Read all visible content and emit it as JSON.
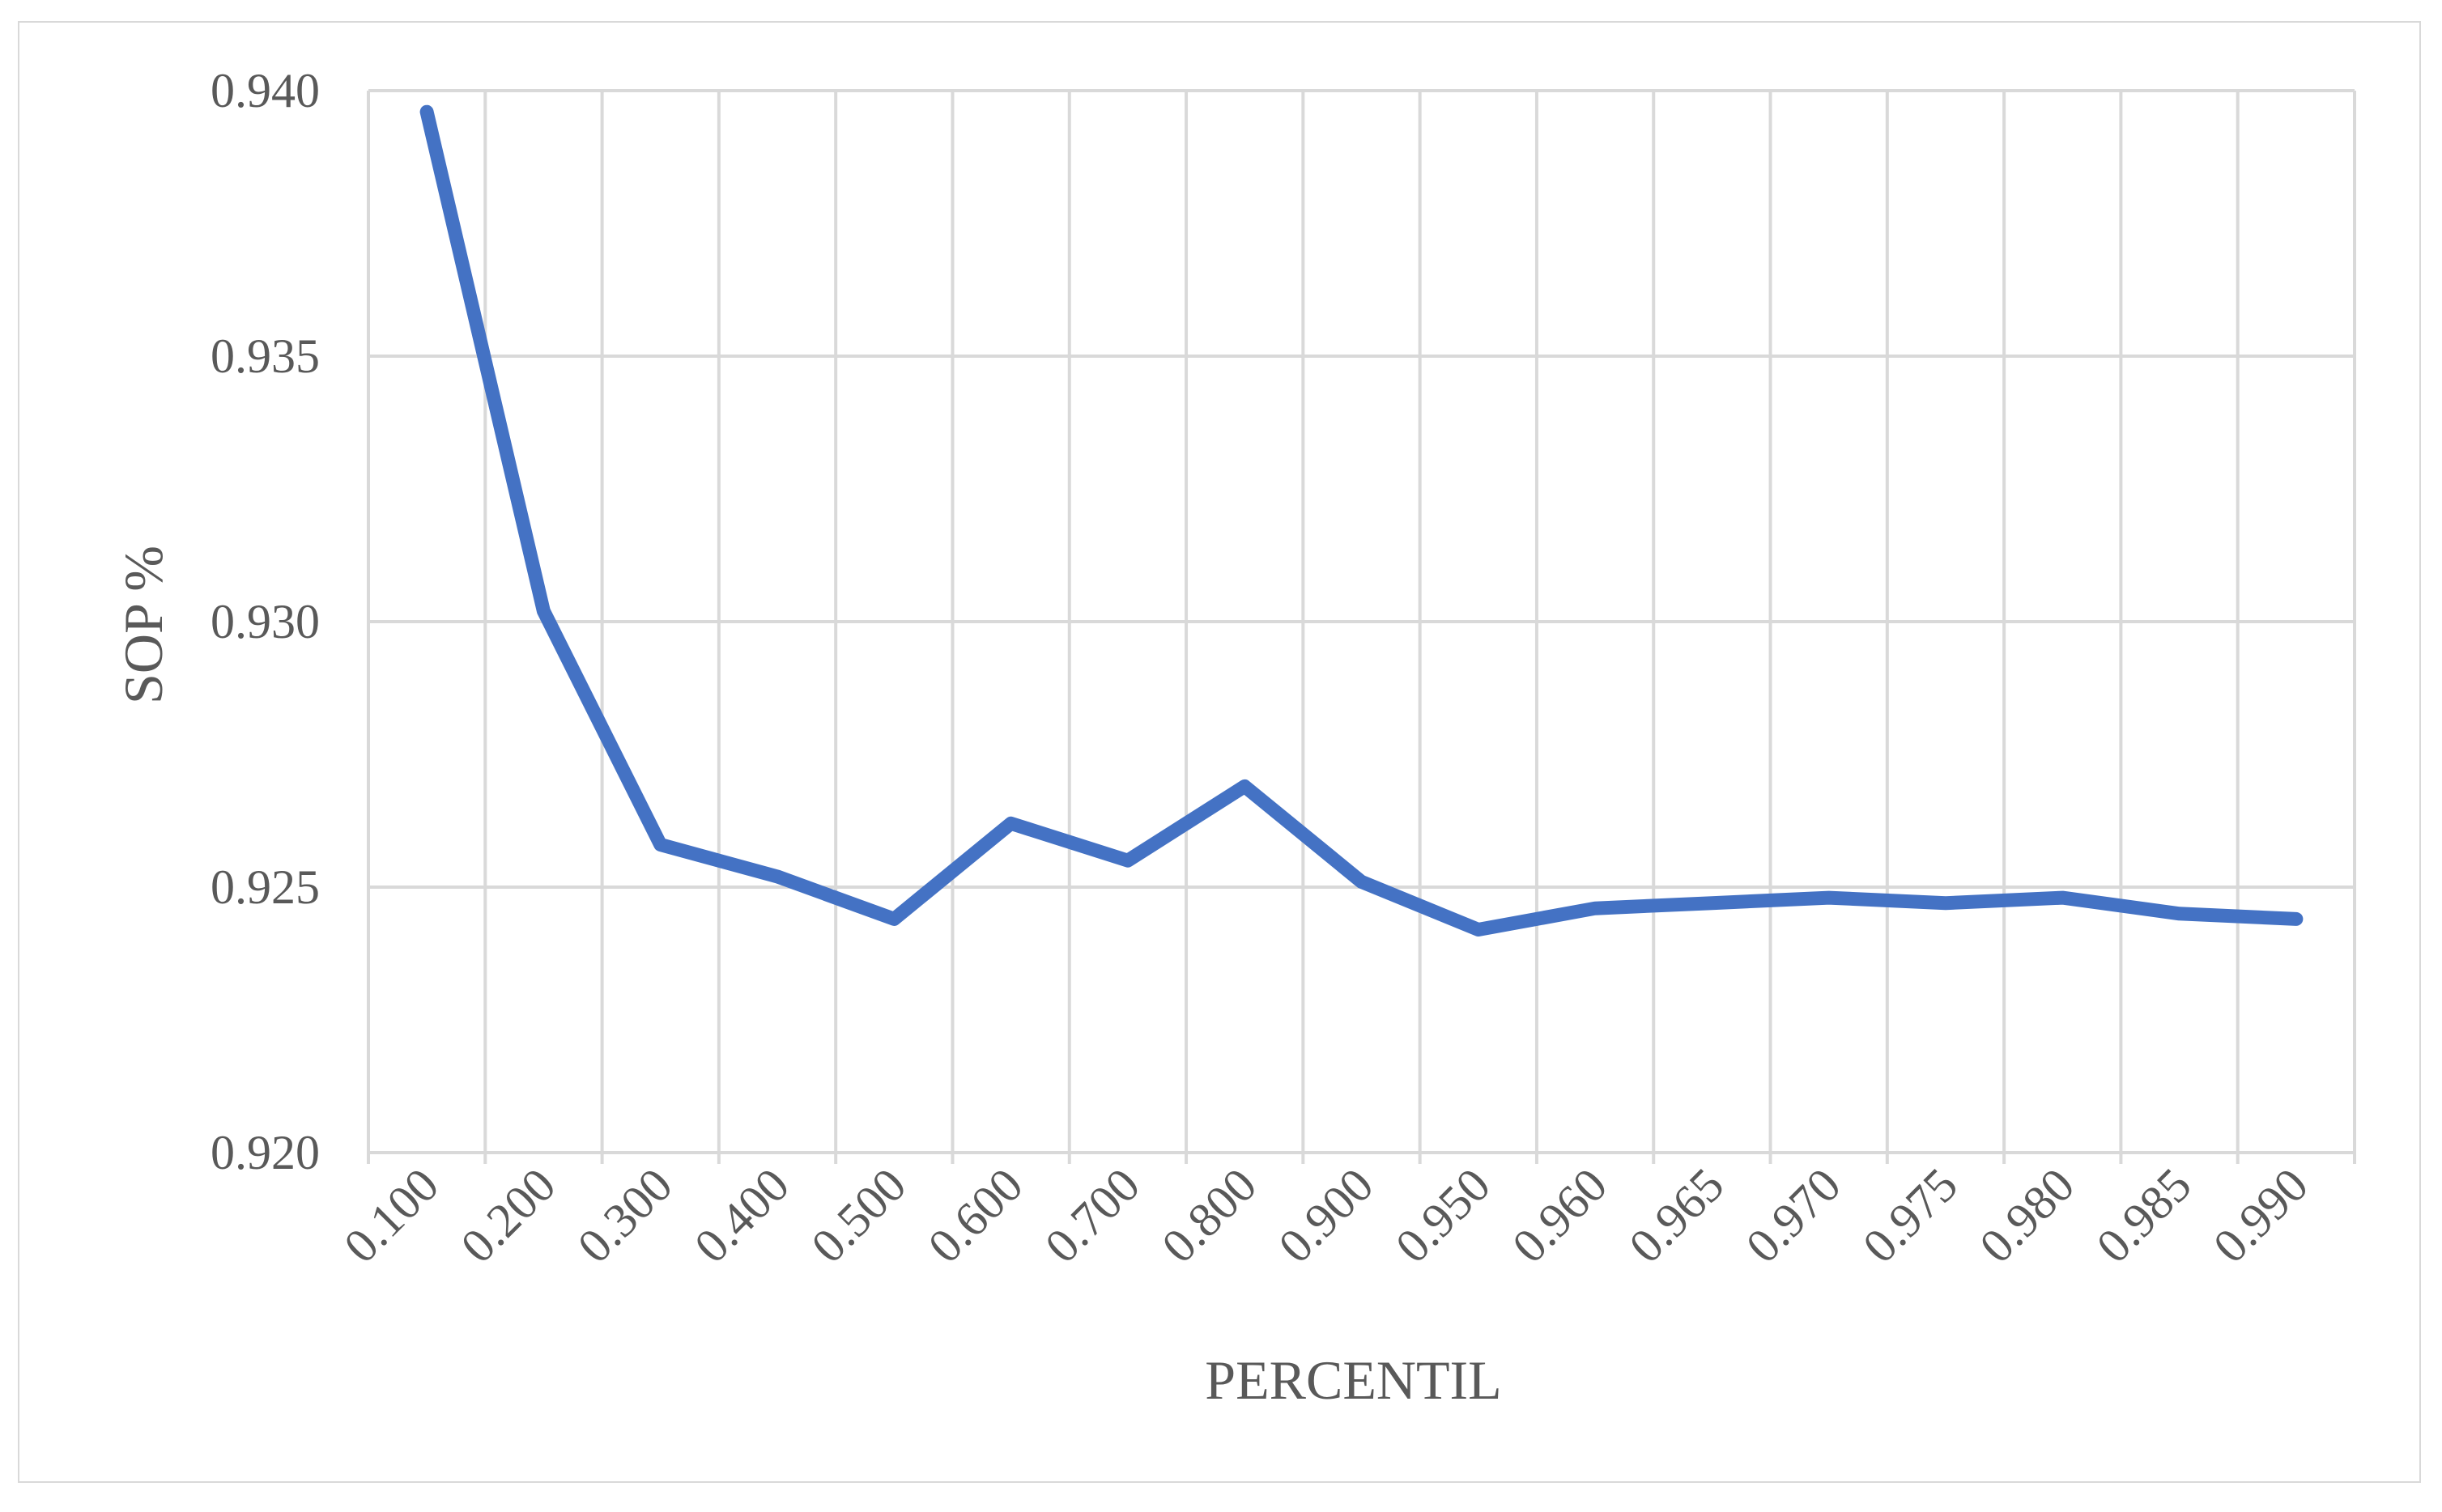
{
  "chart_data": {
    "type": "line",
    "title": "",
    "xlabel": "PERCENTIL",
    "ylabel": "SOP %",
    "categories": [
      "0.100",
      "0.200",
      "0.300",
      "0.400",
      "0.500",
      "0.600",
      "0.700",
      "0.800",
      "0.900",
      "0.950",
      "0.960",
      "0.965",
      "0.970",
      "0.975",
      "0.980",
      "0.985",
      "0.990"
    ],
    "series": [
      {
        "name": "",
        "color": "#4472c4",
        "values": [
          0.9396,
          0.9302,
          0.9258,
          0.9252,
          0.9244,
          0.9262,
          0.9255,
          0.9269,
          0.9251,
          0.9242,
          0.9246,
          0.9247,
          0.9248,
          0.9247,
          0.9248,
          0.9245,
          0.9244
        ]
      }
    ],
    "ylim": [
      0.92,
      0.94
    ],
    "yticks": [
      "0.920",
      "0.925",
      "0.930",
      "0.935",
      "0.940"
    ],
    "ytick_values": [
      0.92,
      0.925,
      0.93,
      0.935,
      0.94
    ],
    "grid": true,
    "legend": "none",
    "gridline_color": "#d9d9d9",
    "text_color": "#595959"
  }
}
